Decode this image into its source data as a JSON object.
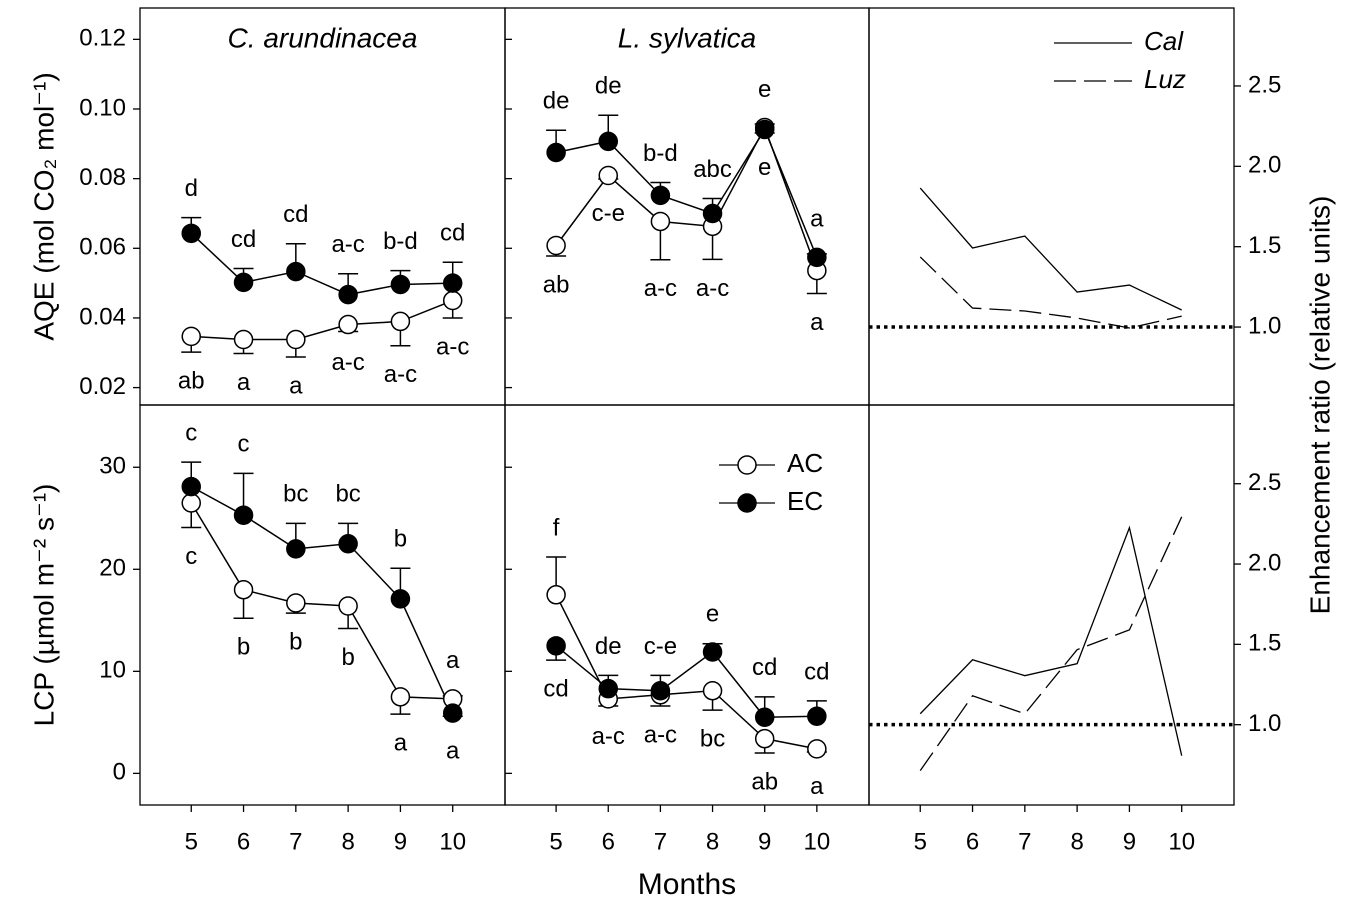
{
  "chart_data": [
    {
      "type": "line",
      "title": "C. arundinacea",
      "ylabel": "AQE (mol CO₂ mol⁻¹)",
      "x": [
        5,
        6,
        7,
        8,
        9,
        10
      ],
      "xlim": [
        4.02,
        11.0
      ],
      "ylim": [
        0.015,
        0.129
      ],
      "yticks": [
        0.02,
        0.04,
        0.06,
        0.08,
        {
          "value": 0.1,
          "label": "0.10"
        },
        0.12
      ],
      "series": [
        {
          "marker": "open",
          "color": "#000000",
          "values": [
            0.0347,
            0.0338,
            0.0338,
            0.0381,
            0.039,
            0.045
          ],
          "errors": [
            0.0045,
            0.004,
            0.005,
            0.002,
            0.007,
            0.005
          ],
          "letters": [
            "ab",
            "a",
            "a",
            "a-c",
            "a-c",
            "a-c"
          ]
        },
        {
          "marker": "filled",
          "color": "#000000",
          "values": [
            0.0643,
            0.0502,
            0.0533,
            0.0467,
            0.0496,
            0.05
          ],
          "errors": [
            0.0045,
            0.004,
            0.008,
            0.006,
            0.004,
            0.006
          ],
          "letters": [
            "d",
            "cd",
            "cd",
            "a-c",
            "b-d",
            "cd"
          ]
        }
      ]
    },
    {
      "type": "line",
      "title": "L. sylvatica",
      "x": [
        5,
        6,
        7,
        8,
        9,
        10
      ],
      "xlim": [
        4.02,
        11.0
      ],
      "ylim": [
        0.015,
        0.129
      ],
      "yticks": [
        0.02,
        0.04,
        0.06,
        0.08,
        0.1,
        0.12
      ],
      "series": [
        {
          "marker": "open",
          "color": "#000000",
          "values": [
            0.0608,
            0.0809,
            0.0677,
            0.0663,
            0.0947,
            0.0536
          ],
          "errors": [
            0.003,
            0.001,
            0.011,
            0.0095,
            0.001,
            0.0066
          ],
          "letters": [
            "ab",
            "c-e",
            "a-c",
            "a-c",
            "e",
            "a"
          ]
        },
        {
          "marker": "filled",
          "color": "#000000",
          "values": [
            0.0875,
            0.0907,
            0.0752,
            0.07,
            0.0941,
            0.0574
          ],
          "errors": [
            0.0064,
            0.0075,
            0.0037,
            0.0043,
            0.001,
            0.001
          ],
          "letters": [
            "de",
            "de",
            "b-d",
            "abc",
            "e",
            "a"
          ]
        }
      ]
    },
    {
      "type": "ratio",
      "y2label": "Enhancement ratio (relative units)",
      "x": [
        5,
        6,
        7,
        8,
        9,
        10
      ],
      "xlim": [
        4.02,
        11.0
      ],
      "y2lim": [
        0.515,
        2.985
      ],
      "y2ticks": [
        {
          "value": 1,
          "label": "1.0"
        },
        1.5,
        {
          "value": 2,
          "label": "2.0"
        },
        2.5
      ],
      "reference_line": 1,
      "legend": "upper right",
      "series": [
        {
          "name": "Cal",
          "dash": "solid",
          "color": "#000000",
          "axis": "y2",
          "values": [
            1.865,
            1.492,
            1.566,
            1.218,
            1.261,
            1.106
          ]
        },
        {
          "name": "Luz",
          "dash": "dashed",
          "color": "#000000",
          "axis": "y2",
          "values": [
            1.436,
            1.118,
            1.1,
            1.056,
            0.994,
            1.068
          ]
        }
      ]
    },
    {
      "type": "line",
      "ylabel": "LCP (µmol m⁻² s⁻¹)",
      "x": [
        5,
        6,
        7,
        8,
        9,
        10
      ],
      "xlim": [
        4.02,
        11.0
      ],
      "xticks": [
        5,
        6,
        7,
        8,
        9,
        10
      ],
      "ylim": [
        -3.1,
        36.1
      ],
      "yticks": [
        0,
        10,
        20,
        30
      ],
      "series": [
        {
          "marker": "open",
          "color": "#000000",
          "values": [
            26.5,
            18.0,
            16.7,
            16.4,
            7.5,
            7.3
          ],
          "errors": [
            2.4,
            2.8,
            1.0,
            2.2,
            1.7,
            0.3
          ],
          "letters": [
            "c",
            "b",
            "b",
            "b",
            "a",
            "a"
          ]
        },
        {
          "marker": "filled",
          "color": "#000000",
          "values": [
            28.1,
            25.3,
            22.0,
            22.5,
            17.1,
            5.9
          ],
          "errors": [
            2.4,
            4.1,
            2.5,
            2.0,
            3.0,
            0.3
          ],
          "letters": [
            "c",
            "c",
            "bc",
            "bc",
            "b",
            "a"
          ]
        }
      ]
    },
    {
      "type": "line",
      "xlabel": "Months",
      "legend": "upper right",
      "x": [
        5,
        6,
        7,
        8,
        9,
        10
      ],
      "xlim": [
        4.02,
        11.0
      ],
      "xticks": [
        5,
        6,
        7,
        8,
        9,
        10
      ],
      "ylim": [
        -3.1,
        36.1
      ],
      "yticks": [
        0,
        10,
        20,
        30
      ],
      "series": [
        {
          "name": "AC",
          "marker": "open",
          "color": "#000000",
          "values": [
            17.5,
            7.3,
            7.7,
            8.1,
            3.4,
            2.4
          ],
          "errors": [
            3.7,
            0.7,
            1.1,
            1.9,
            1.4,
            0.3
          ],
          "letters": [
            "f",
            "a-c",
            "a-c",
            "bc",
            "ab",
            "a"
          ]
        },
        {
          "name": "EC",
          "marker": "filled",
          "color": "#000000",
          "values": [
            12.5,
            8.3,
            8.1,
            11.9,
            5.5,
            5.6
          ],
          "errors": [
            1.4,
            1.3,
            1.5,
            0.8,
            2.0,
            1.5
          ],
          "letters": [
            "cd",
            "de",
            "c-e",
            "e",
            "cd",
            "cd"
          ]
        }
      ]
    },
    {
      "type": "ratio",
      "x": [
        5,
        6,
        7,
        8,
        9,
        10
      ],
      "xlim": [
        4.02,
        11.0
      ],
      "xticks": [
        5,
        6,
        7,
        8,
        9,
        10
      ],
      "y2lim": [
        0.5,
        2.99
      ],
      "y2ticks": [
        {
          "value": 1,
          "label": "1.0"
        },
        1.5,
        {
          "value": 2,
          "label": "2.0"
        },
        2.5
      ],
      "reference_line": 1,
      "series": [
        {
          "dash": "solid",
          "color": "#000000",
          "axis": "y2",
          "values": [
            1.068,
            1.404,
            1.305,
            1.38,
            2.226,
            0.807
          ]
        },
        {
          "dash": "dashed",
          "color": "#000000",
          "axis": "y2",
          "values": [
            0.714,
            1.18,
            1.068,
            1.467,
            1.59,
            2.294
          ]
        }
      ]
    }
  ]
}
